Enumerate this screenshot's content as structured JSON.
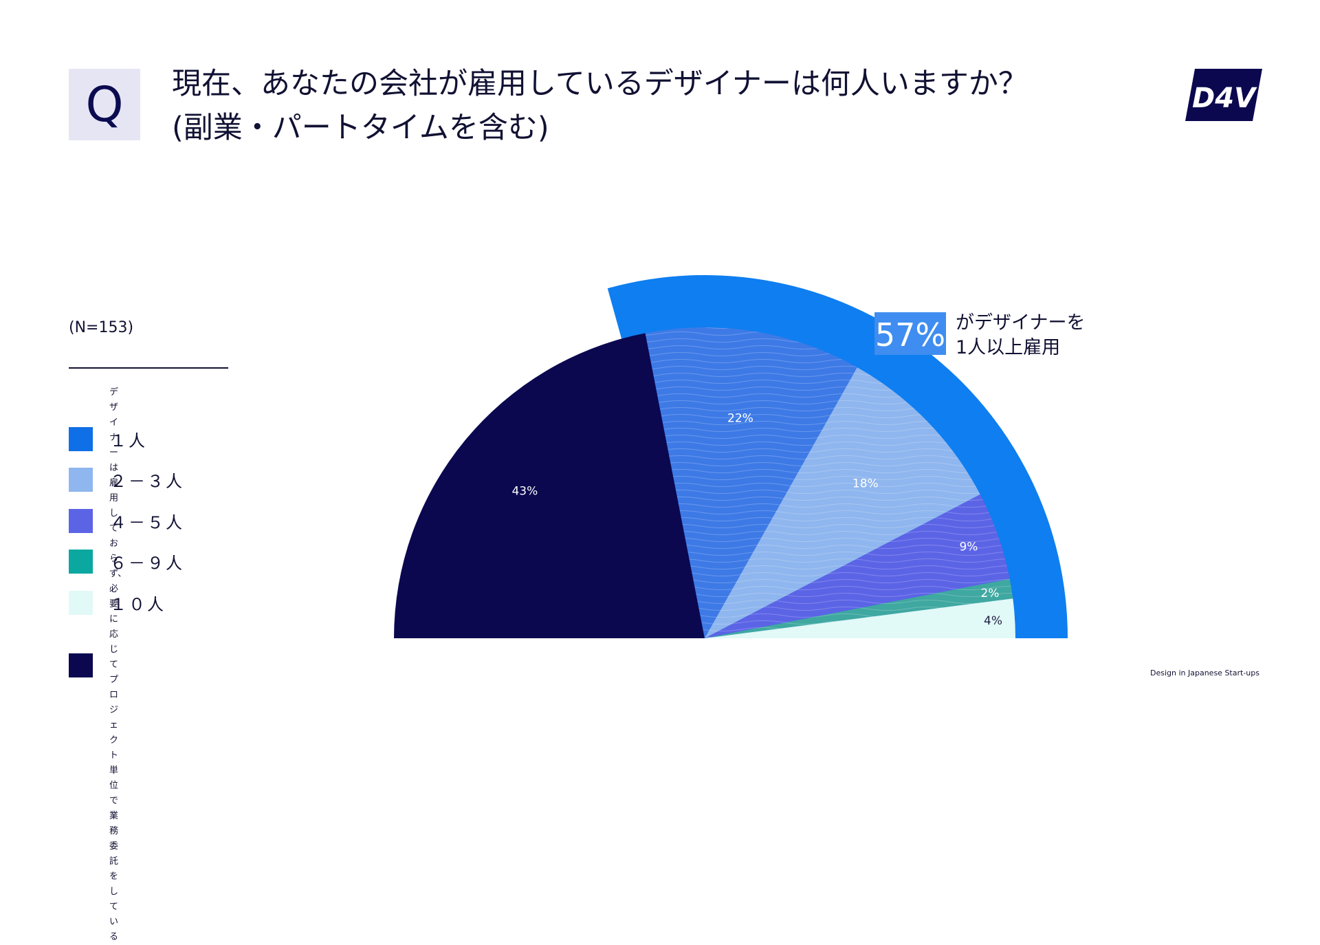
{
  "header": {
    "q_letter": "Q",
    "question_line1": "現在、あなたの会社が雇用しているデザイナーは何人いますか？",
    "question_line2": "(副業・パートタイムを含む)",
    "logo_text": "D4V"
  },
  "sample_size": "(N=153)",
  "legend": [
    {
      "label": "デザイナーは雇用しておらず、必要に応じて\nプロジェクト単位で業務委託をしている",
      "color": "#0b0850"
    },
    {
      "label": "１人",
      "color": "#0f6fe6"
    },
    {
      "label": "２－３人",
      "color": "#8fb6ee"
    },
    {
      "label": "４－５人",
      "color": "#5c64e6"
    },
    {
      "label": "６－９人",
      "color": "#0aa8a0"
    },
    {
      "label": "１０人",
      "color": "#e1f9f7"
    }
  ],
  "chart_data": {
    "type": "pie",
    "layout": "semicircle",
    "categories": [
      "デザイナーは雇用しておらず、必要に応じてプロジェクト単位で業務委託をしている",
      "１人",
      "２－３人",
      "４－５人",
      "６－９人",
      "１０人"
    ],
    "values": [
      43,
      22,
      18,
      9,
      2,
      4
    ],
    "labels": [
      "43%",
      "22%",
      "18%",
      "9%",
      "2%",
      "4%"
    ],
    "colors": [
      "#0b0850",
      "#3e7ae6",
      "#8fb6ee",
      "#5c64e6",
      "#3fa8a0",
      "#e1f9f7"
    ],
    "outer_ring_color": "#0f7ef0",
    "highlight_color": "#3f8df0",
    "annotation": {
      "value": "57%",
      "line1": "がデザイナーを",
      "line2": "1人以上雇用"
    }
  },
  "footer": "Design in Japanese Start-ups"
}
